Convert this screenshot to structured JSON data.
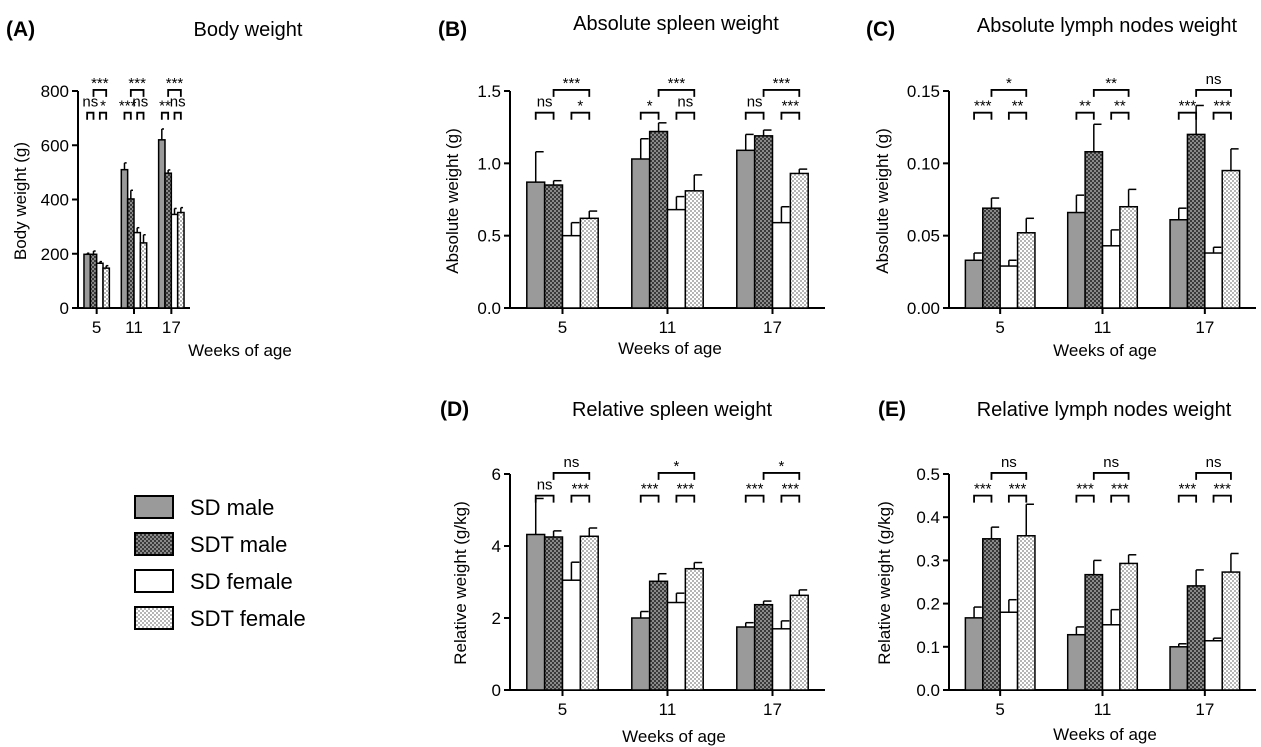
{
  "figure": {
    "x_label": "Weeks of age",
    "legend": [
      {
        "label": "SD male",
        "fill": "gray"
      },
      {
        "label": "SDT male",
        "fill": "dark-checker"
      },
      {
        "label": "SD female",
        "fill": "white"
      },
      {
        "label": "SDT female",
        "fill": "light-checker"
      }
    ],
    "colors": {
      "sd_male": "#9a9a9a",
      "sdt_male_dark": "#3a3a3a",
      "sd_female": "#ffffff",
      "sdt_female_light": "#e9e9e9",
      "axis": "#000000"
    }
  },
  "chart_data": [
    {
      "id": "A",
      "letter": "(A)",
      "type": "bar",
      "title": "Body weight",
      "xlabel": "Weeks of age",
      "ylabel": "Body weight (g)",
      "categories": [
        "5",
        "11",
        "17"
      ],
      "ylim": [
        0,
        800
      ],
      "yticks": [
        {
          "v": 0,
          "label": "0"
        },
        {
          "v": 200,
          "label": "200"
        },
        {
          "v": 400,
          "label": "400"
        },
        {
          "v": 600,
          "label": "600"
        },
        {
          "v": 800,
          "label": "800"
        }
      ],
      "series": [
        {
          "name": "SD male",
          "values": [
            198,
            510,
            620
          ],
          "errors": [
            4,
            25,
            40
          ]
        },
        {
          "name": "SDT male",
          "values": [
            198,
            402,
            497
          ],
          "errors": [
            12,
            32,
            12
          ]
        },
        {
          "name": "SD female",
          "values": [
            165,
            278,
            345
          ],
          "errors": [
            6,
            18,
            22
          ]
        },
        {
          "name": "SDT female",
          "values": [
            147,
            240,
            352
          ],
          "errors": [
            9,
            30,
            18
          ]
        }
      ],
      "significance": [
        {
          "group": 0,
          "pair": "male",
          "label": "ns"
        },
        {
          "group": 0,
          "pair": "female",
          "label": "*"
        },
        {
          "group": 0,
          "pair": "sdt",
          "label": "***"
        },
        {
          "group": 1,
          "pair": "male",
          "label": "***"
        },
        {
          "group": 1,
          "pair": "female",
          "label": "ns"
        },
        {
          "group": 1,
          "pair": "sdt",
          "label": "***"
        },
        {
          "group": 2,
          "pair": "male",
          "label": "**"
        },
        {
          "group": 2,
          "pair": "female",
          "label": "ns"
        },
        {
          "group": 2,
          "pair": "sdt",
          "label": "***"
        }
      ]
    },
    {
      "id": "B",
      "letter": "(B)",
      "type": "bar",
      "title": "Absolute spleen weight",
      "xlabel": "Weeks of age",
      "ylabel": "Absolute weight (g)",
      "categories": [
        "5",
        "11",
        "17"
      ],
      "ylim": [
        0,
        1.5
      ],
      "yticks": [
        {
          "v": 0,
          "label": "0.0"
        },
        {
          "v": 0.5,
          "label": "0.5"
        },
        {
          "v": 1.0,
          "label": "1.0"
        },
        {
          "v": 1.5,
          "label": "1.5"
        }
      ],
      "series": [
        {
          "name": "SD male",
          "values": [
            0.87,
            1.03,
            1.09
          ],
          "errors": [
            0.21,
            0.14,
            0.11
          ]
        },
        {
          "name": "SDT male",
          "values": [
            0.85,
            1.22,
            1.19
          ],
          "errors": [
            0.03,
            0.06,
            0.04
          ]
        },
        {
          "name": "SD female",
          "values": [
            0.5,
            0.68,
            0.59
          ],
          "errors": [
            0.09,
            0.09,
            0.11
          ]
        },
        {
          "name": "SDT female",
          "values": [
            0.62,
            0.81,
            0.93
          ],
          "errors": [
            0.05,
            0.11,
            0.03
          ]
        }
      ],
      "significance": [
        {
          "group": 0,
          "pair": "male",
          "label": "ns"
        },
        {
          "group": 0,
          "pair": "female",
          "label": "*"
        },
        {
          "group": 0,
          "pair": "sdt",
          "label": "***"
        },
        {
          "group": 1,
          "pair": "male",
          "label": "*"
        },
        {
          "group": 1,
          "pair": "female",
          "label": "ns"
        },
        {
          "group": 1,
          "pair": "sdt",
          "label": "***"
        },
        {
          "group": 2,
          "pair": "male",
          "label": "ns"
        },
        {
          "group": 2,
          "pair": "female",
          "label": "***"
        },
        {
          "group": 2,
          "pair": "sdt",
          "label": "***"
        }
      ]
    },
    {
      "id": "C",
      "letter": "(C)",
      "type": "bar",
      "title": "Absolute lymph nodes weight",
      "xlabel": "Weeks of age",
      "ylabel": "Absolute weight (g)",
      "categories": [
        "5",
        "11",
        "17"
      ],
      "ylim": [
        0,
        0.15
      ],
      "yticks": [
        {
          "v": 0,
          "label": "0.00"
        },
        {
          "v": 0.05,
          "label": "0.05"
        },
        {
          "v": 0.1,
          "label": "0.10"
        },
        {
          "v": 0.15,
          "label": "0.15"
        }
      ],
      "series": [
        {
          "name": "SD male",
          "values": [
            0.033,
            0.066,
            0.061
          ],
          "errors": [
            0.005,
            0.012,
            0.008
          ]
        },
        {
          "name": "SDT male",
          "values": [
            0.069,
            0.108,
            0.12
          ],
          "errors": [
            0.007,
            0.019,
            0.02
          ]
        },
        {
          "name": "SD female",
          "values": [
            0.029,
            0.043,
            0.038
          ],
          "errors": [
            0.004,
            0.011,
            0.004
          ]
        },
        {
          "name": "SDT female",
          "values": [
            0.052,
            0.07,
            0.095
          ],
          "errors": [
            0.01,
            0.012,
            0.015
          ]
        }
      ],
      "significance": [
        {
          "group": 0,
          "pair": "male",
          "label": "***"
        },
        {
          "group": 0,
          "pair": "female",
          "label": "**"
        },
        {
          "group": 0,
          "pair": "sdt",
          "label": "*"
        },
        {
          "group": 1,
          "pair": "male",
          "label": "**"
        },
        {
          "group": 1,
          "pair": "female",
          "label": "**"
        },
        {
          "group": 1,
          "pair": "sdt",
          "label": "**"
        },
        {
          "group": 2,
          "pair": "male",
          "label": "***"
        },
        {
          "group": 2,
          "pair": "female",
          "label": "***"
        },
        {
          "group": 2,
          "pair": "sdt",
          "label": "ns"
        }
      ]
    },
    {
      "id": "D",
      "letter": "(D)",
      "type": "bar",
      "title": "Relative spleen weight",
      "xlabel": "Weeks of age",
      "ylabel": "Relative weight (g/kg)",
      "categories": [
        "5",
        "11",
        "17"
      ],
      "ylim": [
        0,
        6
      ],
      "yticks": [
        {
          "v": 0,
          "label": "0"
        },
        {
          "v": 2,
          "label": "2"
        },
        {
          "v": 4,
          "label": "4"
        },
        {
          "v": 6,
          "label": "6"
        }
      ],
      "series": [
        {
          "name": "SD male",
          "values": [
            4.32,
            2.0,
            1.75
          ],
          "errors": [
            1.0,
            0.18,
            0.12
          ]
        },
        {
          "name": "SDT male",
          "values": [
            4.25,
            3.02,
            2.37
          ],
          "errors": [
            0.17,
            0.21,
            0.1
          ]
        },
        {
          "name": "SD female",
          "values": [
            3.05,
            2.43,
            1.7
          ],
          "errors": [
            0.5,
            0.26,
            0.22
          ]
        },
        {
          "name": "SDT female",
          "values": [
            4.27,
            3.37,
            2.63
          ],
          "errors": [
            0.23,
            0.17,
            0.15
          ]
        }
      ],
      "significance": [
        {
          "group": 0,
          "pair": "male",
          "label": "ns"
        },
        {
          "group": 0,
          "pair": "female",
          "label": "***"
        },
        {
          "group": 0,
          "pair": "sdt",
          "label": "ns"
        },
        {
          "group": 1,
          "pair": "male",
          "label": "***"
        },
        {
          "group": 1,
          "pair": "female",
          "label": "***"
        },
        {
          "group": 1,
          "pair": "sdt",
          "label": "*"
        },
        {
          "group": 2,
          "pair": "male",
          "label": "***"
        },
        {
          "group": 2,
          "pair": "female",
          "label": "***"
        },
        {
          "group": 2,
          "pair": "sdt",
          "label": "*"
        }
      ]
    },
    {
      "id": "E",
      "letter": "(E)",
      "type": "bar",
      "title": "Relative lymph nodes weight",
      "xlabel": "Weeks of age",
      "ylabel": "Relative weight (g/kg)",
      "categories": [
        "5",
        "11",
        "17"
      ],
      "ylim": [
        0,
        0.5
      ],
      "yticks": [
        {
          "v": 0,
          "label": "0.0"
        },
        {
          "v": 0.1,
          "label": "0.1"
        },
        {
          "v": 0.2,
          "label": "0.2"
        },
        {
          "v": 0.3,
          "label": "0.3"
        },
        {
          "v": 0.4,
          "label": "0.4"
        },
        {
          "v": 0.5,
          "label": "0.5"
        }
      ],
      "series": [
        {
          "name": "SD male",
          "values": [
            0.167,
            0.128,
            0.1
          ],
          "errors": [
            0.025,
            0.018,
            0.007
          ]
        },
        {
          "name": "SDT male",
          "values": [
            0.35,
            0.267,
            0.241
          ],
          "errors": [
            0.027,
            0.033,
            0.037
          ]
        },
        {
          "name": "SD female",
          "values": [
            0.18,
            0.151,
            0.114
          ],
          "errors": [
            0.029,
            0.035,
            0.006
          ]
        },
        {
          "name": "SDT female",
          "values": [
            0.357,
            0.293,
            0.273
          ],
          "errors": [
            0.073,
            0.02,
            0.043
          ]
        }
      ],
      "significance": [
        {
          "group": 0,
          "pair": "male",
          "label": "***"
        },
        {
          "group": 0,
          "pair": "female",
          "label": "***"
        },
        {
          "group": 0,
          "pair": "sdt",
          "label": "ns"
        },
        {
          "group": 1,
          "pair": "male",
          "label": "***"
        },
        {
          "group": 1,
          "pair": "female",
          "label": "***"
        },
        {
          "group": 1,
          "pair": "sdt",
          "label": "ns"
        },
        {
          "group": 2,
          "pair": "male",
          "label": "***"
        },
        {
          "group": 2,
          "pair": "female",
          "label": "***"
        },
        {
          "group": 2,
          "pair": "sdt",
          "label": "ns"
        }
      ]
    }
  ]
}
